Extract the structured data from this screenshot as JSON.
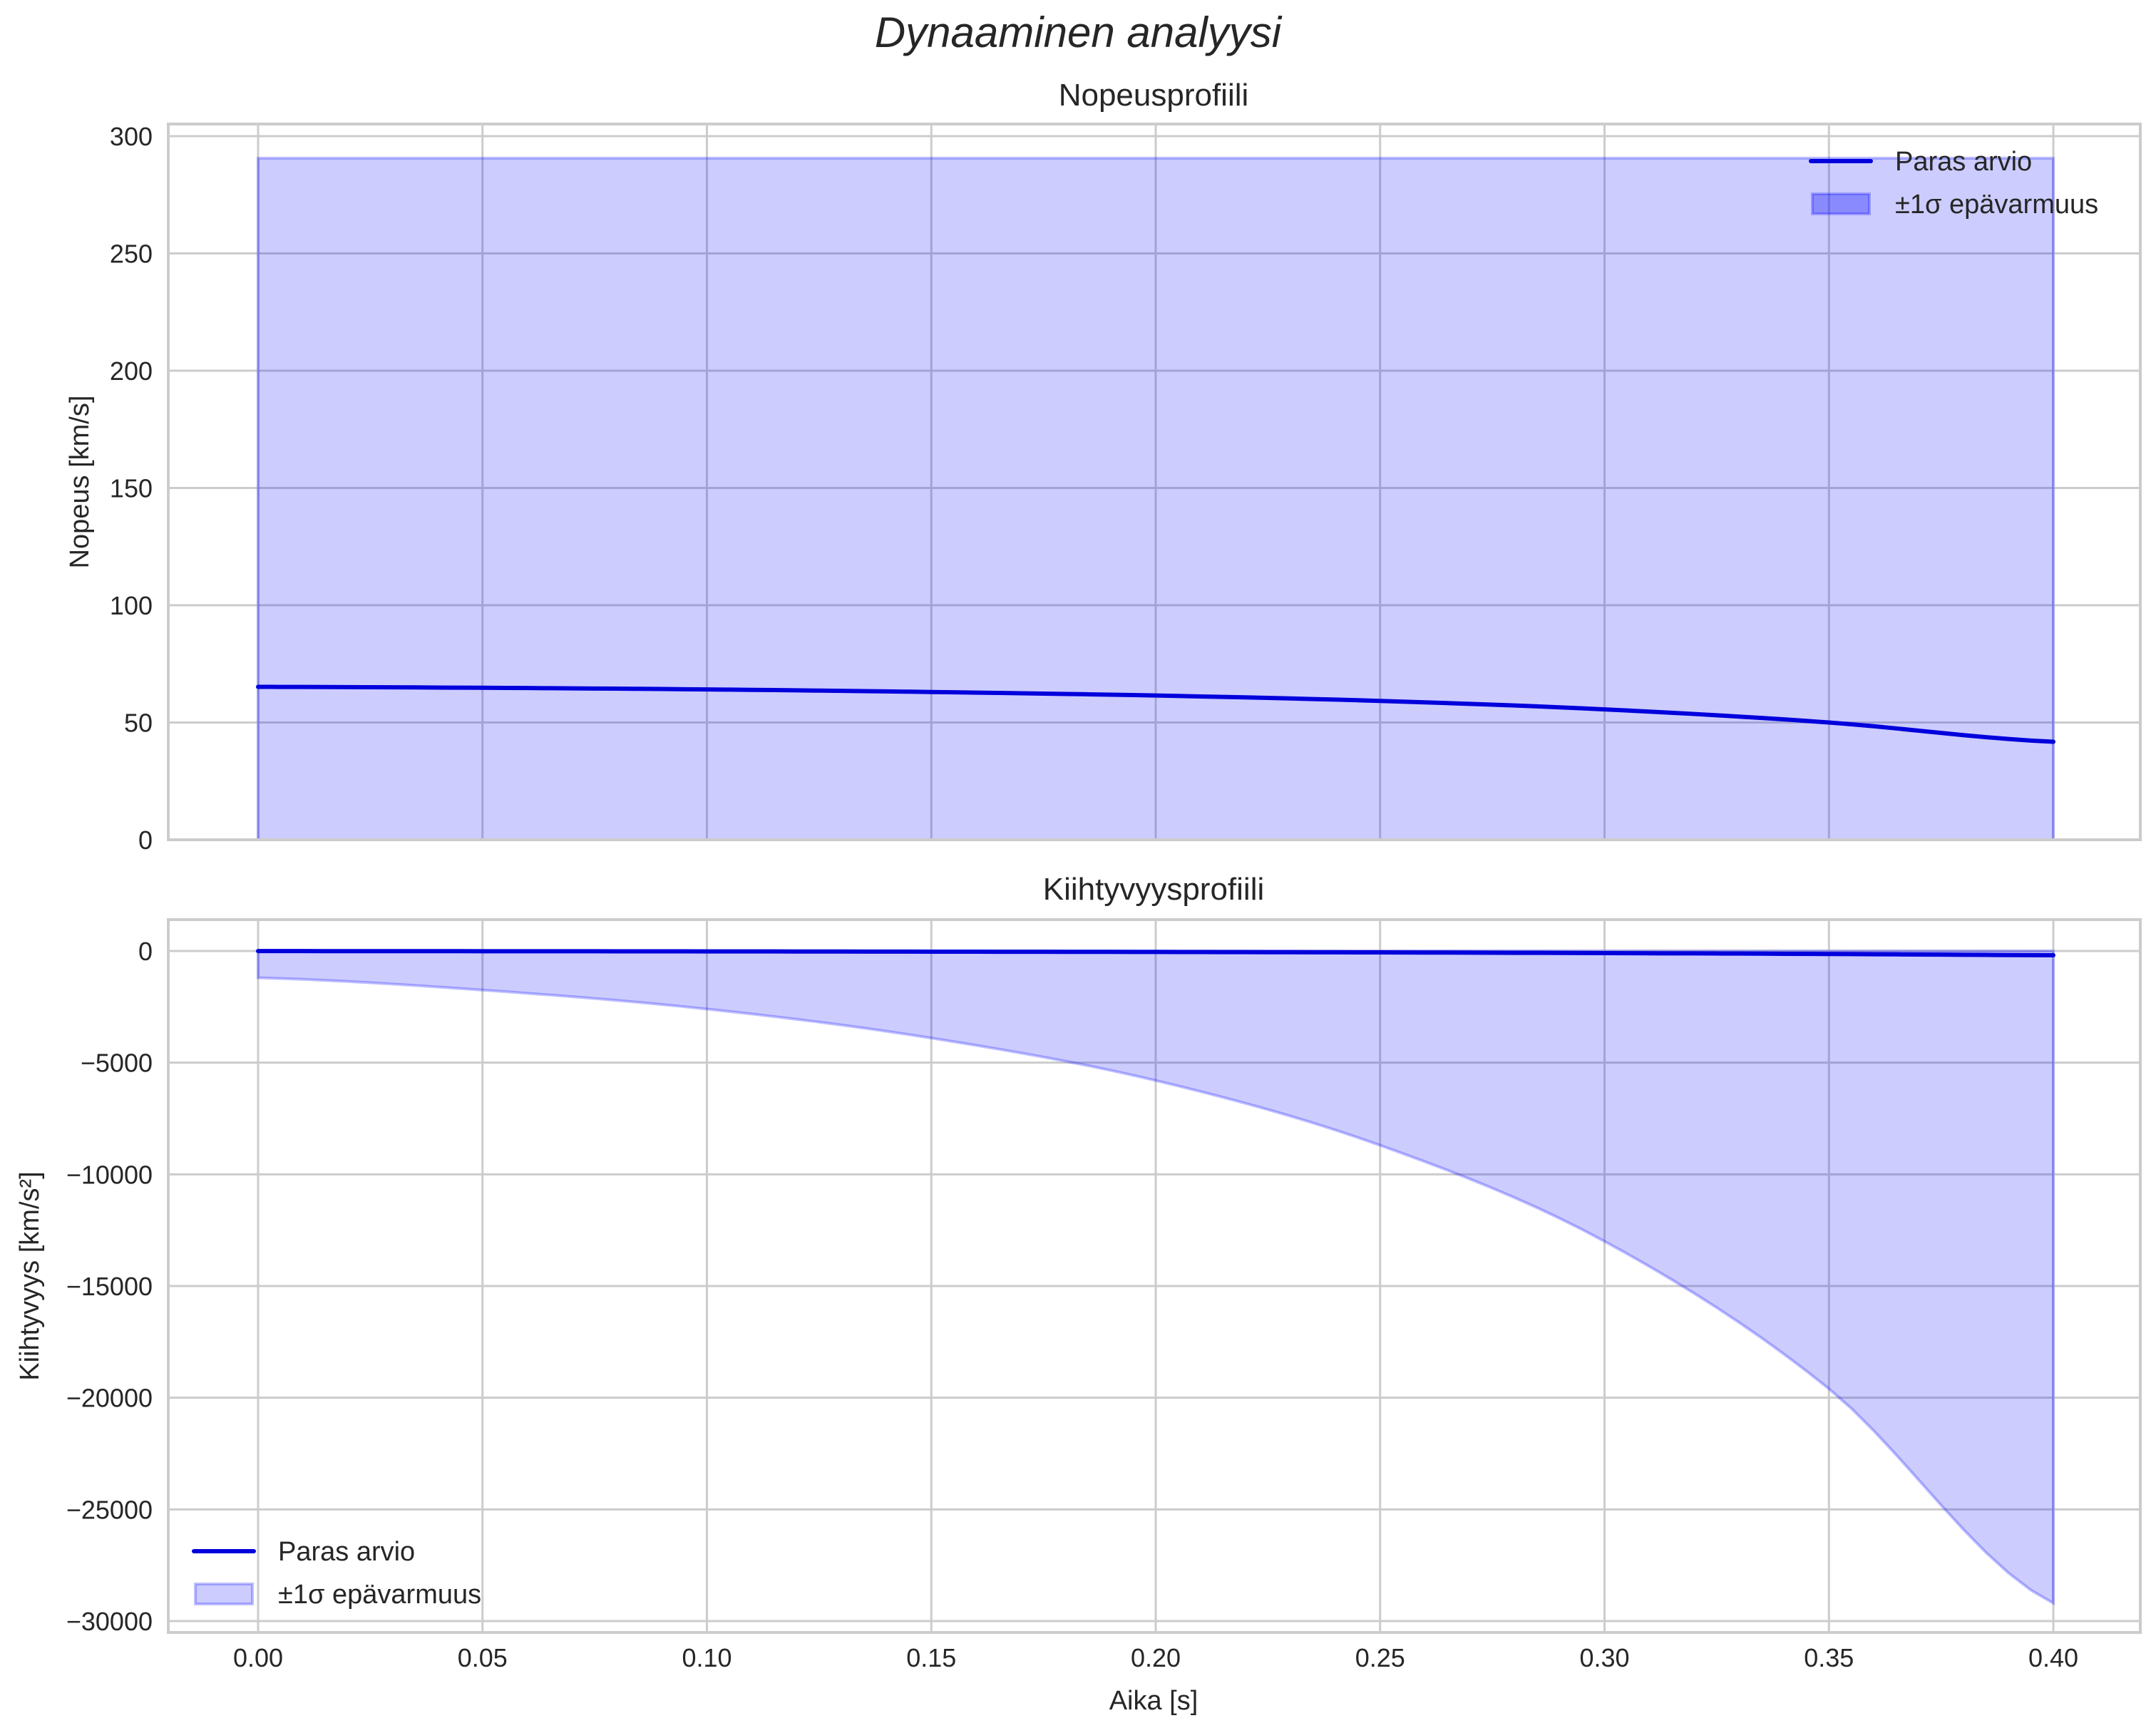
{
  "figure": {
    "suptitle": "Dynaaminen analyysi",
    "xlabel": "Aika [s]"
  },
  "colors": {
    "line": "#0000dd",
    "band_fill": "#ccccfb",
    "band_edge": "#8f8fe6",
    "grid": "#cccccc",
    "frame": "#cccccc",
    "text": "#262626"
  },
  "chart_data": [
    {
      "type": "line",
      "panel": "top",
      "title": "Nopeusprofiili",
      "xlabel": "",
      "ylabel": "Nopeus [km/s]",
      "xlim": [
        -0.02,
        0.42
      ],
      "ylim": [
        0,
        300
      ],
      "xticks": [
        "0.00",
        "0.05",
        "0.10",
        "0.15",
        "0.20",
        "0.25",
        "0.30",
        "0.35",
        "0.40"
      ],
      "yticks": [
        "0",
        "50",
        "100",
        "150",
        "200",
        "250",
        "300"
      ],
      "grid": true,
      "legend": {
        "position": "upper right",
        "entries": [
          "Paras arvio",
          "±1σ epävarmuus"
        ]
      },
      "x": [
        0.0,
        0.05,
        0.1,
        0.15,
        0.2,
        0.25,
        0.3,
        0.35,
        0.4
      ],
      "series": [
        {
          "name": "Paras arvio",
          "kind": "line",
          "values": [
            65.2,
            64.8,
            64.1,
            63.0,
            61.5,
            59.2,
            55.6,
            50.0,
            41.8
          ]
        },
        {
          "name": "±1σ epävarmuus",
          "kind": "band",
          "upper": [
            290.6,
            290.6,
            290.6,
            290.6,
            290.6,
            290.6,
            290.6,
            290.6,
            290.6
          ],
          "lower": [
            0,
            0,
            0,
            0,
            0,
            0,
            0,
            0,
            0
          ]
        }
      ]
    },
    {
      "type": "line",
      "panel": "bottom",
      "title": "Kiihtyvyysprofiili",
      "xlabel": "Aika [s]",
      "ylabel": "Kiihtyvyys [km/s²]",
      "xlim": [
        -0.02,
        0.42
      ],
      "ylim": [
        -30500,
        1500
      ],
      "xticks": [
        "0.00",
        "0.05",
        "0.10",
        "0.15",
        "0.20",
        "0.25",
        "0.30",
        "0.35",
        "0.40"
      ],
      "yticks": [
        "0",
        "−5000",
        "−10000",
        "−15000",
        "−20000",
        "−25000",
        "−30000"
      ],
      "grid": true,
      "legend": {
        "position": "lower left",
        "entries": [
          "Paras arvio",
          "±1σ epävarmuus"
        ]
      },
      "x": [
        0.0,
        0.05,
        0.1,
        0.15,
        0.2,
        0.25,
        0.3,
        0.35,
        0.4
      ],
      "series": [
        {
          "name": "Paras arvio",
          "kind": "line",
          "values": [
            -5,
            -10,
            -18,
            -30,
            -45,
            -65,
            -95,
            -135,
            -190
          ]
        },
        {
          "name": "±1σ epävarmuus",
          "kind": "band",
          "upper": [
            0,
            0,
            0,
            0,
            0,
            0,
            0,
            0,
            0
          ],
          "lower": [
            -1200,
            -1750,
            -2600,
            -3900,
            -5800,
            -8700,
            -13000,
            -19600,
            -29200
          ]
        }
      ]
    }
  ]
}
